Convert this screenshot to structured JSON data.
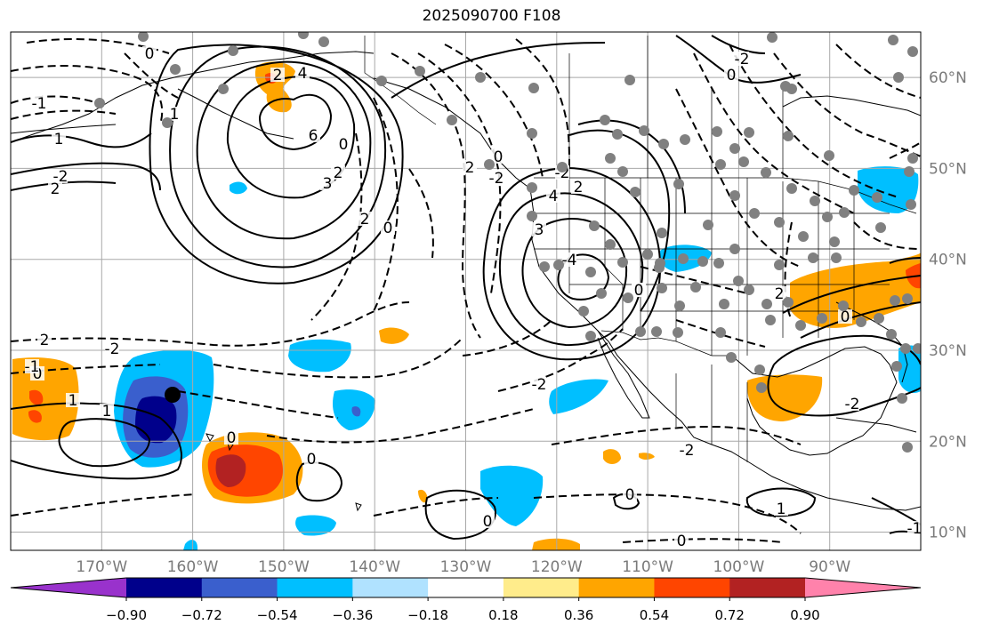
{
  "title": "2025090700 F108",
  "map": {
    "projection": "PlateCarree",
    "lon_range": [
      -180,
      -80
    ],
    "lat_range": [
      8,
      65
    ],
    "lon_ticks": [
      -170,
      -160,
      -150,
      -140,
      -130,
      -120,
      -110,
      -100,
      -90
    ],
    "lon_tick_labels": [
      "170°W",
      "160°W",
      "150°W",
      "140°W",
      "130°W",
      "120°W",
      "110°W",
      "100°W",
      "90°W"
    ],
    "lat_ticks": [
      10,
      20,
      30,
      40,
      50,
      60
    ],
    "lat_tick_labels": [
      "10°N",
      "20°N",
      "30°N",
      "40°N",
      "50°N",
      "60°N"
    ],
    "gridlines": true,
    "features": [
      "coastlines",
      "state-borders",
      "country-borders"
    ]
  },
  "colorbar": {
    "orientation": "horizontal",
    "extend": "both",
    "levels": [
      -0.9,
      -0.72,
      -0.54,
      -0.36,
      -0.18,
      0.18,
      0.36,
      0.54,
      0.72,
      0.9
    ],
    "level_labels": [
      "−0.90",
      "−0.72",
      "−0.54",
      "−0.36",
      "−0.18",
      "0.18",
      "0.36",
      "0.54",
      "0.72",
      "0.90"
    ],
    "colors": [
      "#9932cc",
      "#00008b",
      "#3a5fcd",
      "#00bfff",
      "#b0e2ff",
      "#ffffff",
      "#ffec8b",
      "#ffa500",
      "#ff4500",
      "#b22222",
      "#ff82ab"
    ]
  },
  "contour_labels": [
    "2",
    "4",
    "6",
    "1",
    "0",
    "-1",
    "-2",
    "2",
    "1",
    "3",
    "2",
    "0",
    "2",
    "0",
    "-2",
    "3",
    "-4",
    "-2",
    "1",
    "2",
    "2",
    "4",
    "-2",
    "0",
    "0",
    "0",
    "-2",
    "1",
    "-2",
    "0",
    "1",
    "-1",
    "2",
    "0",
    "0",
    "0",
    "-2",
    "0",
    "1",
    "2",
    "0",
    "-1",
    "0",
    "-2"
  ],
  "markers": {
    "gray_dot_color": "#808080",
    "black_dot_color": "#000000"
  }
}
